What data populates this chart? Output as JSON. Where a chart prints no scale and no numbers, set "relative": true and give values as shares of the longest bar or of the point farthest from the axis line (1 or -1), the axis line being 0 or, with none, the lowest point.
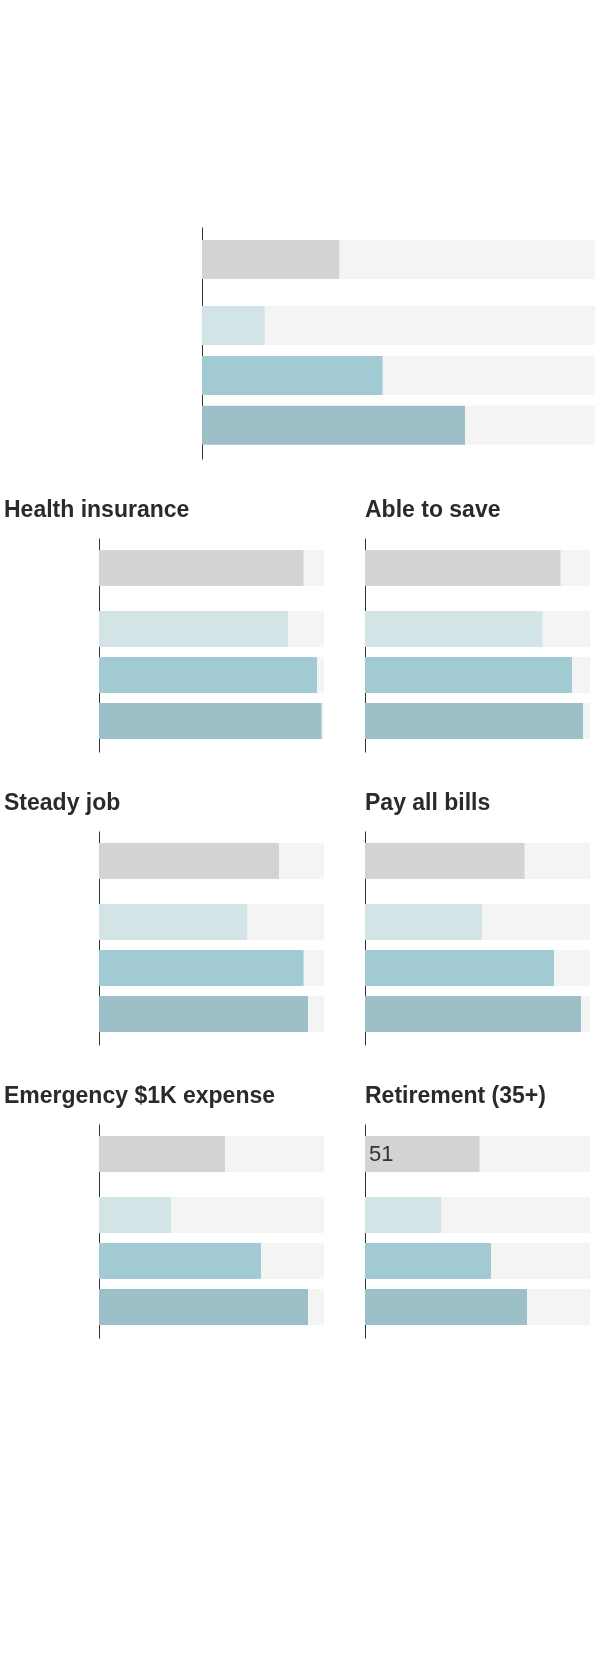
{
  "chart_data": [
    {
      "type": "bar",
      "orientation": "horizontal",
      "stacked": true,
      "relative": true,
      "categories": [
        null,
        null,
        null,
        null
      ],
      "series": [
        {
          "colors": [
            "#d1d3d5",
            "#d3e4e7",
            "#a1cad2",
            "#9cbfc8"
          ],
          "values": [
            0.35,
            0.16,
            0.46,
            0.67
          ]
        },
        {
          "color": "#f4f4f4",
          "values": [
            0.65,
            0.84,
            0.54,
            0.33
          ]
        }
      ]
    },
    {
      "type": "bar",
      "title": "Health insurance",
      "orientation": "horizontal",
      "stacked": true,
      "relative": true,
      "categories": [
        null,
        null,
        null,
        null
      ],
      "series": [
        {
          "colors": [
            "#d1d3d5",
            "#d3e4e7",
            "#a1cad2",
            "#9cbfc8"
          ],
          "values": [
            0.91,
            0.84,
            0.97,
            0.99
          ]
        },
        {
          "color": "#f4f4f4",
          "values": [
            0.09,
            0.16,
            0.03,
            0.01
          ]
        }
      ]
    },
    {
      "type": "bar",
      "title": "Able to save",
      "orientation": "horizontal",
      "stacked": true,
      "relative": true,
      "categories": [
        null,
        null,
        null,
        null
      ],
      "series": [
        {
          "colors": [
            "#d1d3d5",
            "#d3e4e7",
            "#a1cad2",
            "#9cbfc8"
          ],
          "values": [
            0.87,
            0.79,
            0.92,
            0.97
          ]
        },
        {
          "color": "#f4f4f4",
          "values": [
            0.13,
            0.21,
            0.08,
            0.03
          ]
        }
      ]
    },
    {
      "type": "bar",
      "title": "Steady job",
      "orientation": "horizontal",
      "stacked": true,
      "relative": true,
      "categories": [
        null,
        null,
        null,
        null
      ],
      "series": [
        {
          "colors": [
            "#d1d3d5",
            "#d3e4e7",
            "#a1cad2",
            "#9cbfc8"
          ],
          "values": [
            0.8,
            0.66,
            0.91,
            0.93
          ]
        },
        {
          "color": "#f4f4f4",
          "values": [
            0.2,
            0.34,
            0.09,
            0.07
          ]
        }
      ]
    },
    {
      "type": "bar",
      "title": "Pay all bills",
      "orientation": "horizontal",
      "stacked": true,
      "relative": true,
      "categories": [
        null,
        null,
        null,
        null
      ],
      "series": [
        {
          "colors": [
            "#d1d3d5",
            "#d3e4e7",
            "#a1cad2",
            "#9cbfc8"
          ],
          "values": [
            0.71,
            0.52,
            0.84,
            0.96
          ]
        },
        {
          "color": "#f4f4f4",
          "values": [
            0.29,
            0.48,
            0.16,
            0.04
          ]
        }
      ]
    },
    {
      "type": "bar",
      "title": "Emergency $1K expense",
      "orientation": "horizontal",
      "stacked": true,
      "relative": true,
      "categories": [
        null,
        null,
        null,
        null
      ],
      "series": [
        {
          "colors": [
            "#d1d3d5",
            "#d3e4e7",
            "#a1cad2",
            "#9cbfc8"
          ],
          "values": [
            0.56,
            0.32,
            0.72,
            0.93
          ]
        },
        {
          "color": "#f4f4f4",
          "values": [
            0.44,
            0.68,
            0.28,
            0.07
          ]
        }
      ]
    },
    {
      "type": "bar",
      "title": "Retirement (35+)",
      "orientation": "horizontal",
      "stacked": true,
      "xlim": [
        0,
        100
      ],
      "tick_labels": false,
      "categories": [
        null,
        null,
        null,
        null
      ],
      "series": [
        {
          "colors": [
            "#d1d3d5",
            "#d3e4e7",
            "#a1cad2",
            "#9cbfc8"
          ],
          "values": [
            51,
            34,
            56,
            72
          ],
          "value_labels": [
            "51",
            null,
            null,
            null
          ]
        },
        {
          "color": "#f4f4f4",
          "values": [
            49,
            66,
            44,
            28
          ]
        }
      ]
    }
  ]
}
